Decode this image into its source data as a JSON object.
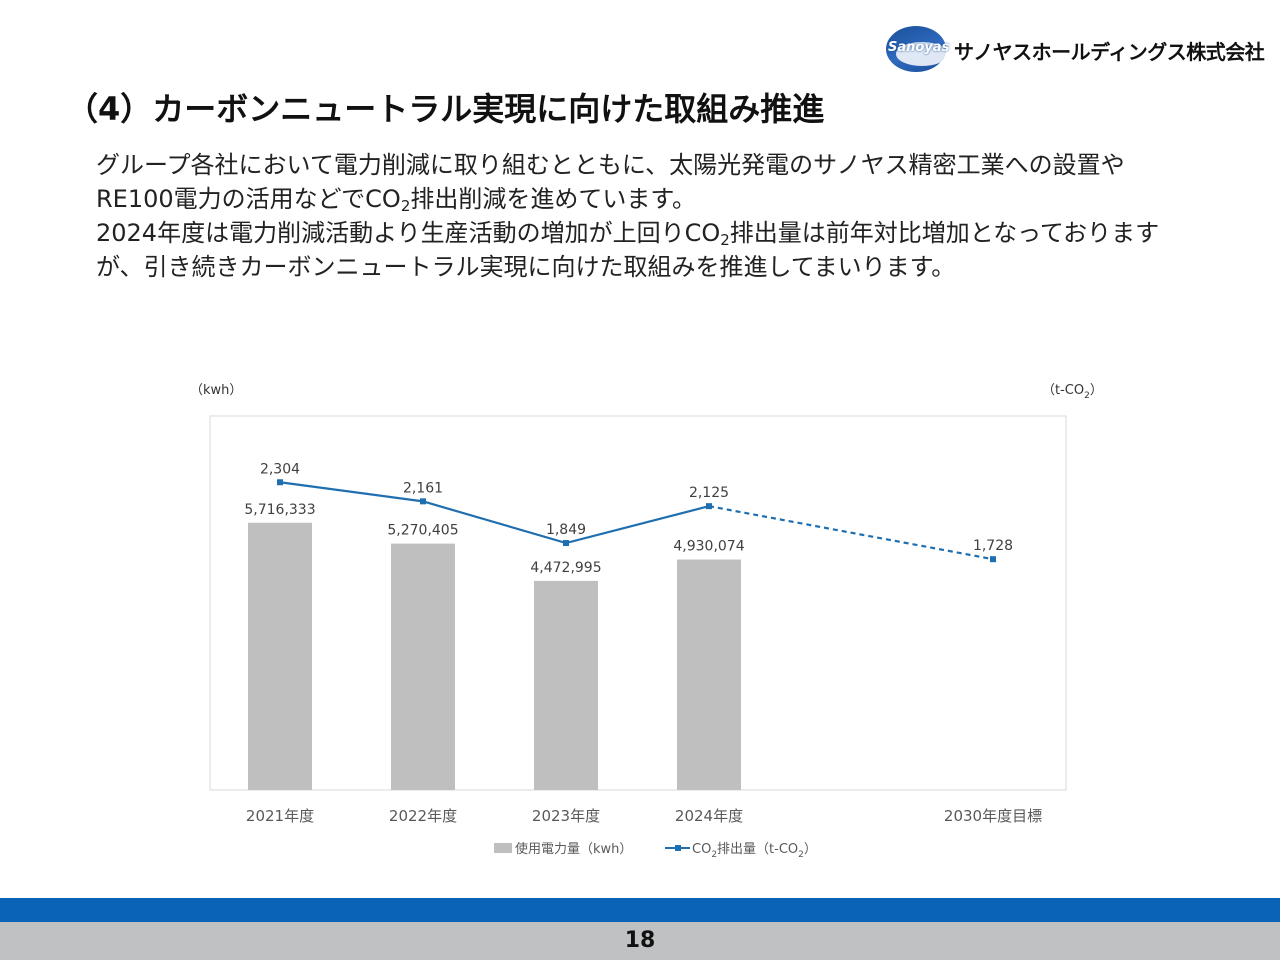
{
  "header": {
    "logo_text": "Sanoyas",
    "company_name": "サノヤスホールディングス株式会社",
    "colors": {
      "logo_blue": "#1a4f9a"
    }
  },
  "title": "（4）カーボンニュートラル実現に向けた取組み推進",
  "body": {
    "p1_a": "グループ各社において電力削減に取り組むとともに、太陽光発電のサノヤス精密工業への設置やRE100電力の活用などでCO",
    "p1_b": "排出削減を進めています。",
    "p2_a": "2024年度は電力削減活動より生産活動の増加が上回りCO",
    "p2_b": "排出量は前年対比増加となっておりますが、引き続きカーボンニュートラル実現に向けた取組みを推進してまいります。",
    "sub_2": "2"
  },
  "chart_data": {
    "type": "bar",
    "categories": [
      "2021年度",
      "2022年度",
      "2023年度",
      "2024年度",
      "2030年度目標"
    ],
    "left_unit": "（kwh）",
    "right_unit_prefix": "（t-CO",
    "right_unit_sub": "2",
    "right_unit_suffix": "）",
    "series": [
      {
        "name": "使用電力量（kwh）",
        "kind": "bar",
        "axis": "left",
        "color": "#bfbfbf",
        "values": [
          5716333,
          5270405,
          4472995,
          4930074,
          null
        ],
        "labels": [
          "5,716,333",
          "5,270,405",
          "4,472,995",
          "4,930,074",
          ""
        ]
      },
      {
        "name_prefix": "CO",
        "name_sub": "2",
        "name_suffix": "排出量（t-CO",
        "name_sub2": "2",
        "name_end": "）",
        "kind": "line",
        "axis": "right",
        "color": "#1f6fb0",
        "values": [
          2304,
          2161,
          1849,
          2125,
          1728
        ],
        "labels": [
          "2,304",
          "2,161",
          "1,849",
          "2,125",
          "1,728"
        ],
        "dashed_from_index": 3
      }
    ],
    "left_ylim": [
      0,
      8000000
    ],
    "right_ylim": [
      0,
      2800
    ],
    "grid": false,
    "legend_position": "bottom"
  },
  "footer": {
    "page_number": "18",
    "colors": {
      "bar_blue": "#0a63b6",
      "bar_gray": "#bfc1c3"
    }
  }
}
